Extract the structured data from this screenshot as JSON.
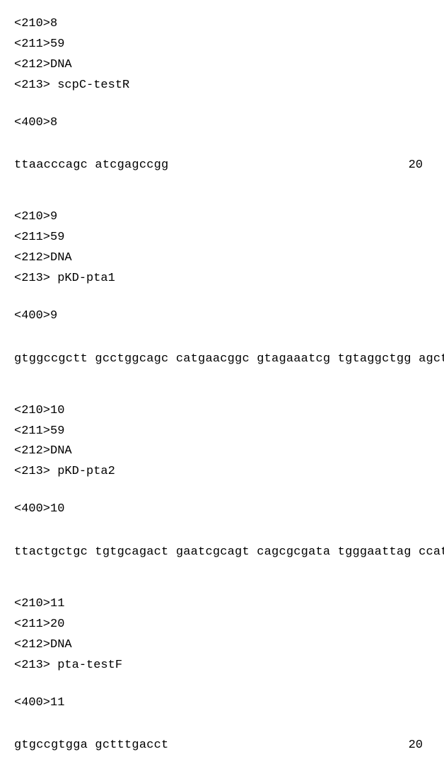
{
  "entries": [
    {
      "tags": {
        "210": "8",
        "211": "59",
        "212": "DNA",
        "213": " scpC-testR"
      },
      "seq_id": "8",
      "sequence": "ttaacccagc atcgagccgg",
      "length": "20"
    },
    {
      "tags": {
        "210": "9",
        "211": "59",
        "212": "DNA",
        "213": " pKD-pta1"
      },
      "seq_id": "9",
      "sequence": "gtggccgctt gcctggcagc catgaacggc gtagaaatcg tgtaggctgg agctgcttc",
      "length": "59"
    },
    {
      "tags": {
        "210": "10",
        "211": "59",
        "212": "DNA",
        "213": " pKD-pta2"
      },
      "seq_id": "10",
      "sequence": "ttactgctgc tgtgcagact gaatcgcagt cagcgcgata tgggaattag ccatggtcc",
      "length": "59"
    },
    {
      "tags": {
        "210": "11",
        "211": "20",
        "212": "DNA",
        "213": " pta-testF"
      },
      "seq_id": "11",
      "sequence": "gtgccgtgga gctttgacct",
      "length": "20"
    }
  ]
}
